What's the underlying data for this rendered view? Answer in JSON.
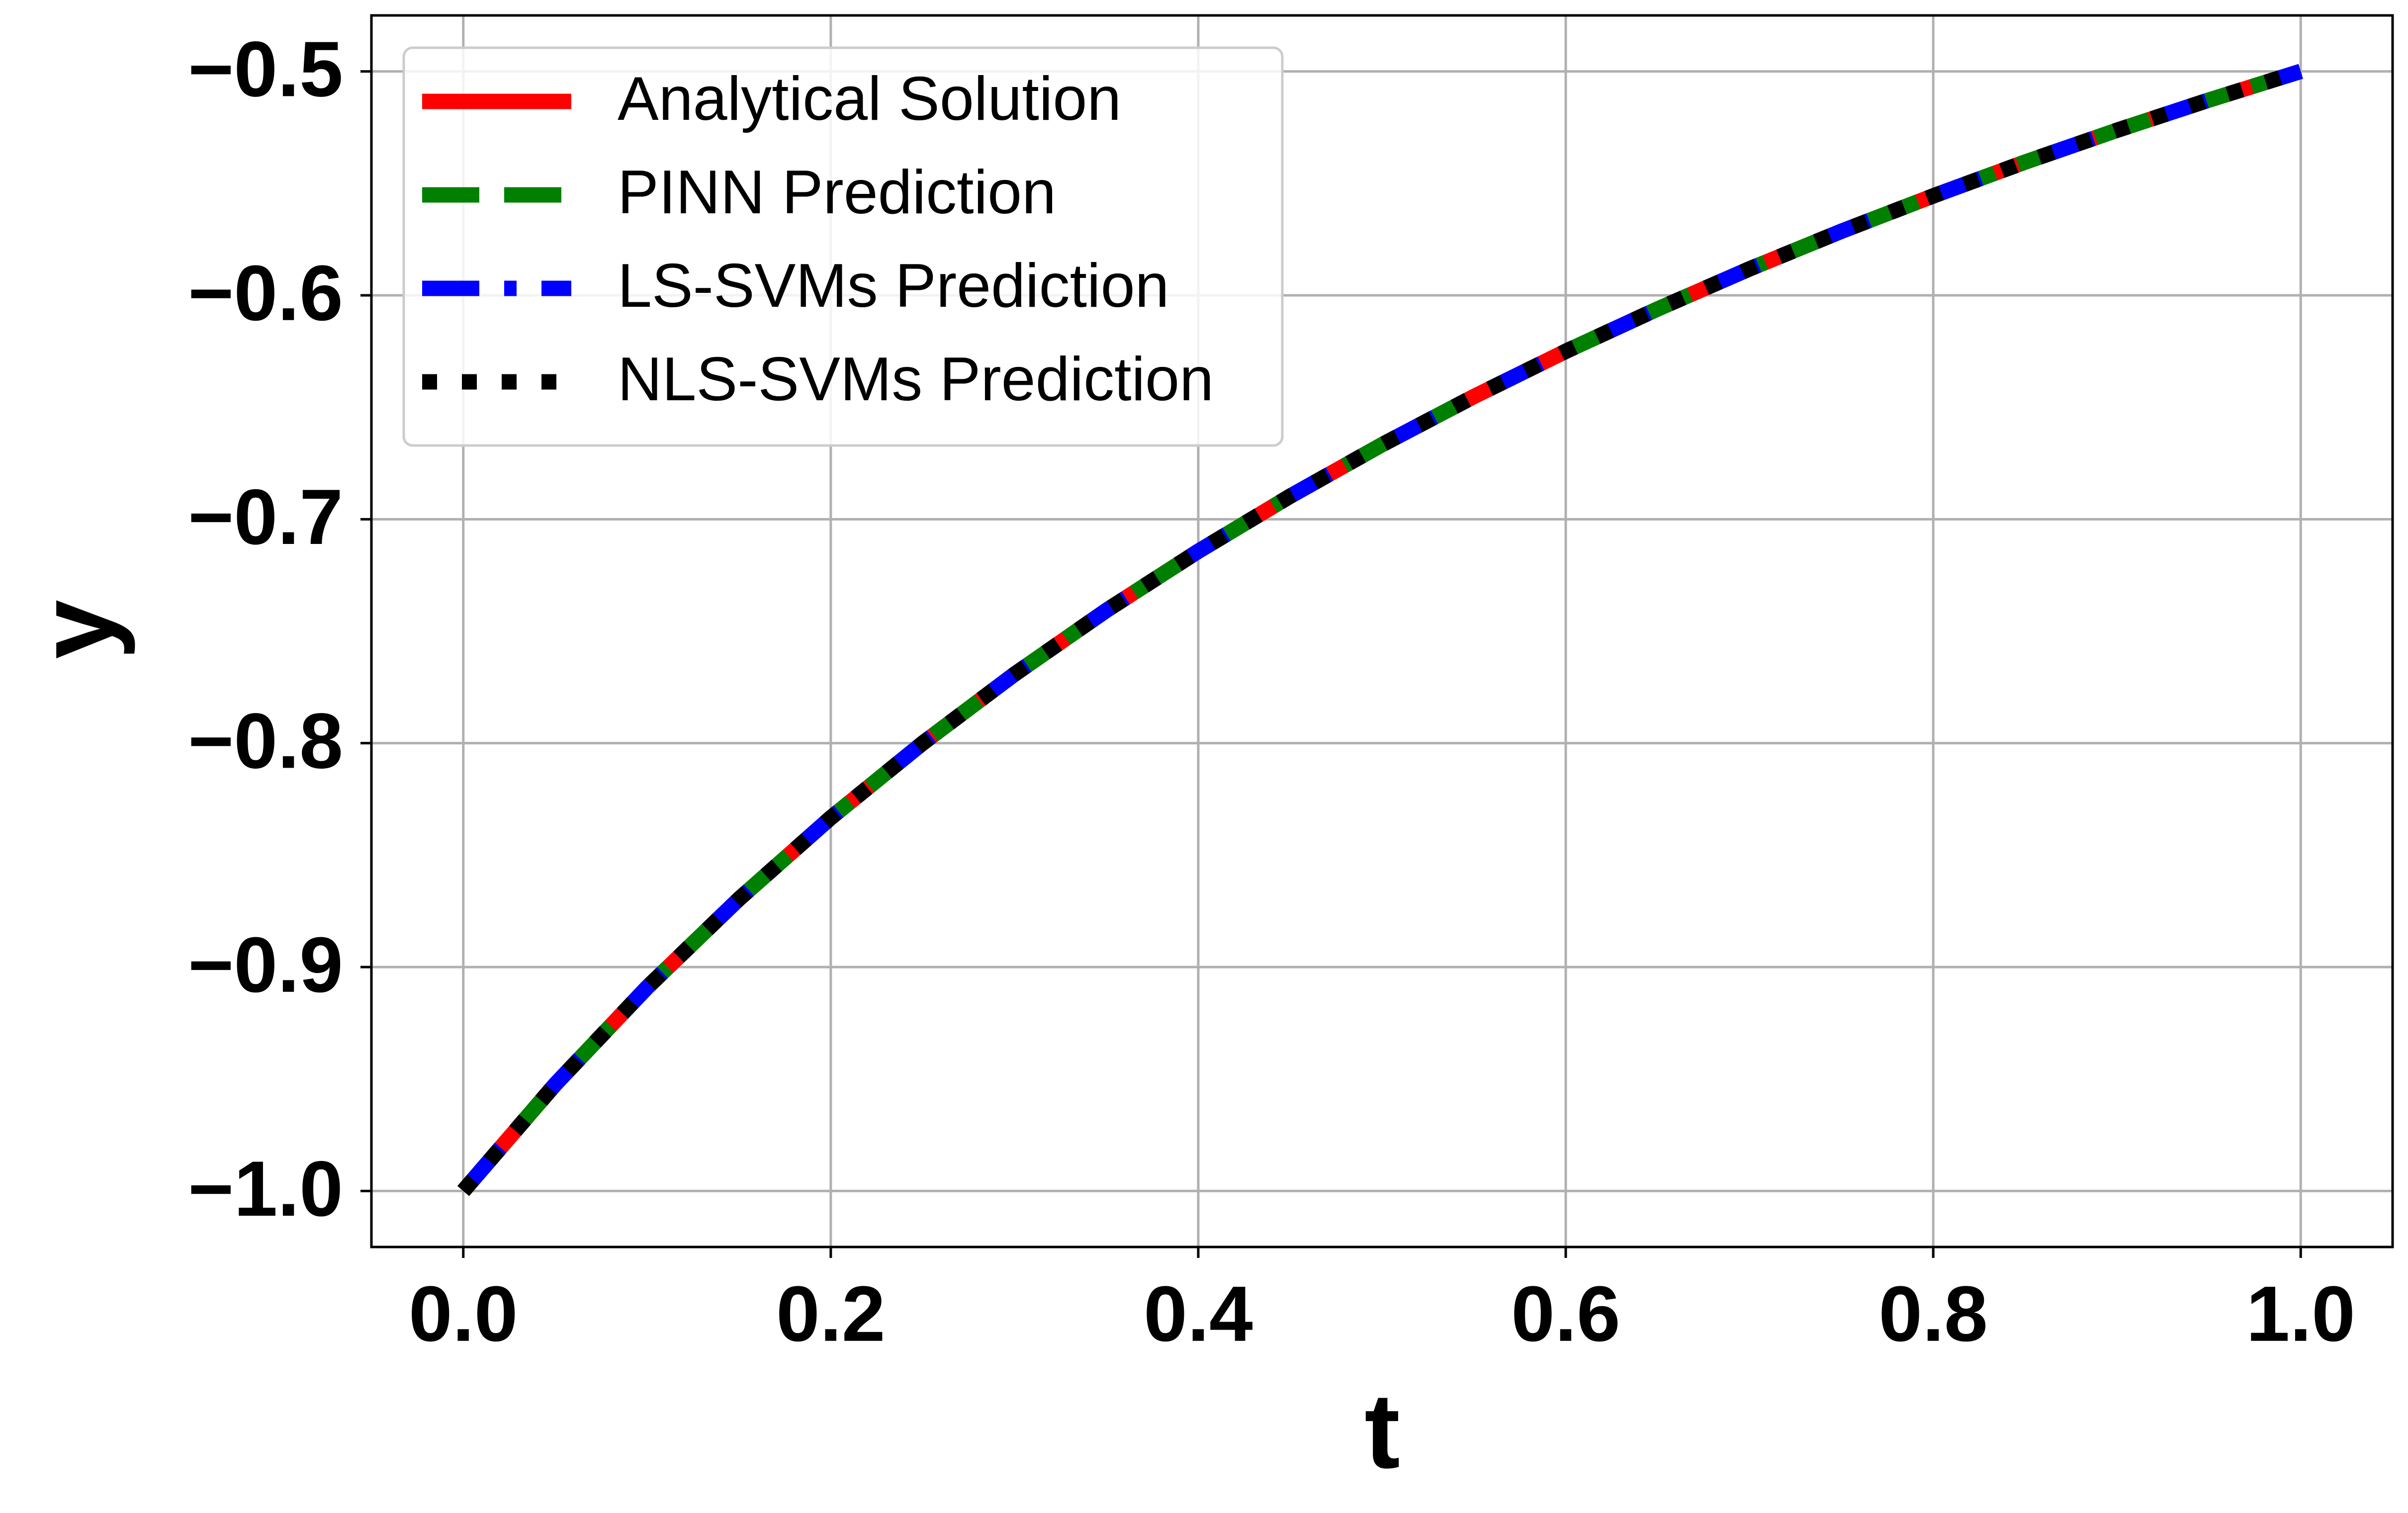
{
  "chart_data": {
    "type": "line",
    "x_label": "t",
    "y_label": "y",
    "x": [
      0,
      0.05,
      0.1,
      0.15,
      0.2,
      0.25,
      0.3,
      0.35,
      0.4,
      0.45,
      0.5,
      0.55,
      0.6,
      0.65,
      0.7,
      0.75,
      0.8,
      0.85,
      0.9,
      0.95,
      1
    ],
    "series": [
      {
        "name": "Analytical Solution",
        "color": "#ff0000",
        "linestyle": "solid",
        "values": [
          -1,
          -0.9524,
          -0.9091,
          -0.8696,
          -0.8333,
          -0.8,
          -0.7692,
          -0.7407,
          -0.7143,
          -0.6897,
          -0.6667,
          -0.6452,
          -0.625,
          -0.6061,
          -0.5882,
          -0.5714,
          -0.5556,
          -0.5405,
          -0.5263,
          -0.5128,
          -0.5
        ]
      },
      {
        "name": "PINN Prediction",
        "color": "#008000",
        "linestyle": "dashed",
        "values": [
          -1,
          -0.9524,
          -0.9091,
          -0.8696,
          -0.8333,
          -0.8,
          -0.7692,
          -0.7407,
          -0.7143,
          -0.6897,
          -0.6667,
          -0.6452,
          -0.625,
          -0.6061,
          -0.5882,
          -0.5714,
          -0.5556,
          -0.5405,
          -0.5263,
          -0.5128,
          -0.5
        ]
      },
      {
        "name": "LS-SVMs Prediction",
        "color": "#0000ff",
        "linestyle": "dashdot",
        "values": [
          -1,
          -0.9524,
          -0.9091,
          -0.8696,
          -0.8333,
          -0.8,
          -0.7692,
          -0.7407,
          -0.7143,
          -0.6897,
          -0.6667,
          -0.6452,
          -0.625,
          -0.6061,
          -0.5882,
          -0.5714,
          -0.5556,
          -0.5405,
          -0.5263,
          -0.5128,
          -0.5
        ]
      },
      {
        "name": "NLS-SVMs Prediction",
        "color": "#000000",
        "linestyle": "dotted",
        "values": [
          -1,
          -0.9524,
          -0.9091,
          -0.8696,
          -0.8333,
          -0.8,
          -0.7692,
          -0.7407,
          -0.7143,
          -0.6897,
          -0.6667,
          -0.6452,
          -0.625,
          -0.6061,
          -0.5882,
          -0.5714,
          -0.5556,
          -0.5405,
          -0.5263,
          -0.5128,
          -0.5
        ]
      }
    ],
    "xlim": [
      -0.05,
      1.05
    ],
    "ylim": [
      -1.025,
      -0.475
    ],
    "xticks": [
      {
        "value": 0,
        "label": "0.0"
      },
      {
        "value": 0.2,
        "label": "0.2"
      },
      {
        "value": 0.4,
        "label": "0.4"
      },
      {
        "value": 0.6,
        "label": "0.6"
      },
      {
        "value": 0.8,
        "label": "0.8"
      },
      {
        "value": 1,
        "label": "1.0"
      }
    ],
    "yticks": [
      {
        "value": -1,
        "label": "−1.0"
      },
      {
        "value": -0.9,
        "label": "−0.9"
      },
      {
        "value": -0.8,
        "label": "−0.8"
      },
      {
        "value": -0.7,
        "label": "−0.7"
      },
      {
        "value": -0.6,
        "label": "−0.6"
      },
      {
        "value": -0.5,
        "label": "−0.5"
      }
    ],
    "grid": true,
    "legend": "upper left"
  }
}
